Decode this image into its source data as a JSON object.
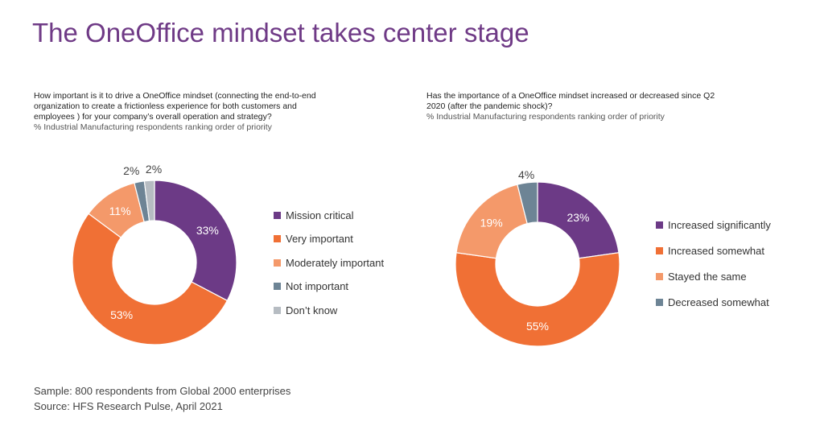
{
  "title": "The OneOffice mindset takes center stage",
  "left": {
    "question": "How important is it to drive a OneOffice mindset (connecting the end-to-end organization to create a frictionless experience for both customers and employees ) for your company’s overall operation and strategy?",
    "subtitle": "% Industrial Manufacturing respondents ranking order of priority"
  },
  "right": {
    "question": "Has the importance of a OneOffice mindset increased or decreased since Q2 2020 (after the pandemic shock)?",
    "subtitle": "% Industrial Manufacturing respondents ranking order of priority"
  },
  "chart_data": [
    {
      "type": "pie",
      "donut": true,
      "legend_position": "right",
      "categories": [
        "Mission critical",
        "Very important",
        "Moderately important",
        "Not important",
        "Don’t know"
      ],
      "values": [
        33,
        53,
        11,
        2,
        2
      ],
      "labels": [
        "33%",
        "53%",
        "11%",
        "2%",
        "2%"
      ],
      "colors": [
        "#6c3a86",
        "#f07035",
        "#f4996a",
        "#6d8495",
        "#b6bcc2"
      ]
    },
    {
      "type": "pie",
      "donut": true,
      "legend_position": "right",
      "categories": [
        "Increased significantly",
        "Increased somewhat",
        "Stayed the same",
        "Decreased somewhat"
      ],
      "values": [
        23,
        55,
        19,
        4
      ],
      "labels": [
        "23%",
        "55%",
        "19%",
        "4%"
      ],
      "colors": [
        "#6c3a86",
        "#f07035",
        "#f4996a",
        "#6d8495"
      ]
    }
  ],
  "footnote": {
    "sample": "Sample: 800 respondents from Global 2000 enterprises",
    "source": "Source: HFS Research Pulse, April 2021"
  }
}
